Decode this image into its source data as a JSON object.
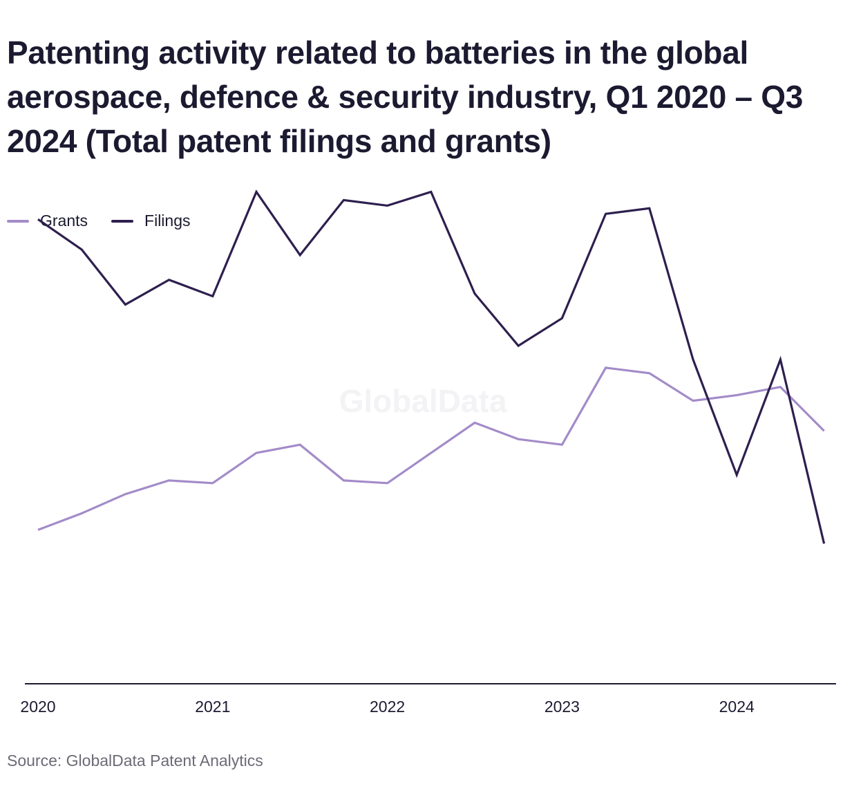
{
  "title": "Patenting activity related to batteries in the global aerospace, defence & security industry, Q1 2020 – Q3 2024 (Total patent filings and grants)",
  "source": "Source: GlobalData Patent Analytics",
  "watermark": "GlobalData",
  "colors": {
    "grants": "#a38bc9",
    "filings": "#2e1f4f",
    "axis": "#1b1a30",
    "watermark": "#f3f2f5"
  },
  "chart_data": {
    "type": "line",
    "x": [
      "Q1 2020",
      "Q2 2020",
      "Q3 2020",
      "Q4 2020",
      "Q1 2021",
      "Q2 2021",
      "Q3 2021",
      "Q4 2021",
      "Q1 2022",
      "Q2 2022",
      "Q3 2022",
      "Q4 2022",
      "Q1 2023",
      "Q2 2023",
      "Q3 2023",
      "Q4 2023",
      "Q1 2024",
      "Q2 2024",
      "Q3 2024"
    ],
    "x_ticks": [
      {
        "label": "2020",
        "index": 0
      },
      {
        "label": "2021",
        "index": 4
      },
      {
        "label": "2022",
        "index": 8
      },
      {
        "label": "2023",
        "index": 12
      },
      {
        "label": "2024",
        "index": 16
      }
    ],
    "series": [
      {
        "name": "Grants",
        "values": [
          28,
          31,
          34.5,
          37,
          36.5,
          42,
          43.5,
          37,
          36.5,
          42,
          47.5,
          44.5,
          43.5,
          57.5,
          56.5,
          51.5,
          52.5,
          54,
          46
        ]
      },
      {
        "name": "Filings",
        "values": [
          84.5,
          79,
          69,
          73.5,
          70.5,
          89.5,
          78,
          88,
          87,
          89.5,
          71,
          61.5,
          66.5,
          85.5,
          86.5,
          59,
          38,
          59,
          25.5
        ]
      }
    ],
    "ylim": [
      0,
      100
    ],
    "grid": false,
    "legend_position": "top-left",
    "xlabel": "",
    "ylabel": ""
  }
}
